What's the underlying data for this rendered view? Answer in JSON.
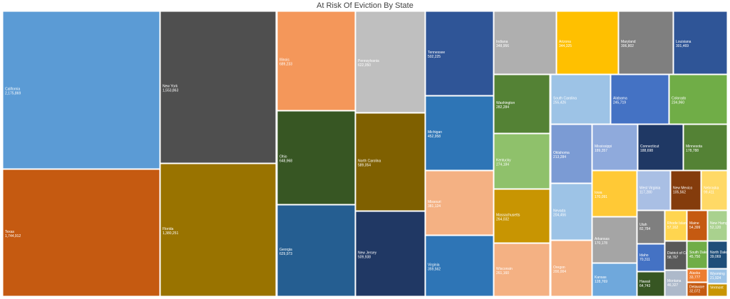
{
  "chart_data": {
    "type": "treemap",
    "title": "At Risk Of Eviction By State",
    "items": [
      {
        "name": "California",
        "value": "2,175,869",
        "v": 2175869,
        "color": "#5b9bd5"
      },
      {
        "name": "Texas",
        "value": "1,744,912",
        "v": 1744912,
        "color": "#c55a11"
      },
      {
        "name": "New York",
        "value": "1,553,863",
        "v": 1553863,
        "color": "#4f4f4f"
      },
      {
        "name": "Florida",
        "value": "1,380,251",
        "v": 1380251,
        "color": "#997300"
      },
      {
        "name": "Illinois",
        "value": "689,233",
        "v": 689233,
        "color": "#f4975a"
      },
      {
        "name": "Ohio",
        "value": "648,968",
        "v": 648968,
        "color": "#375623"
      },
      {
        "name": "Georgia",
        "value": "629,973",
        "v": 629973,
        "color": "#255e91"
      },
      {
        "name": "Pennsylvania",
        "value": "622,050",
        "v": 622050,
        "color": "#bfbfbf"
      },
      {
        "name": "North Carolina",
        "value": "589,054",
        "v": 589054,
        "color": "#7f6000"
      },
      {
        "name": "New Jersey",
        "value": "509,938",
        "v": 509938,
        "color": "#203864"
      },
      {
        "name": "Tennessee",
        "value": "502,225",
        "v": 502225,
        "color": "#2f5597"
      },
      {
        "name": "Michigan",
        "value": "452,958",
        "v": 452958,
        "color": "#2e75b6"
      },
      {
        "name": "Missouri",
        "value": "381,124",
        "v": 381124,
        "color": "#f4b183"
      },
      {
        "name": "Virginia",
        "value": "359,562",
        "v": 359562,
        "color": "#2e75b6"
      },
      {
        "name": "Indiana",
        "value": "348,956",
        "v": 348956,
        "color": "#afafaf"
      },
      {
        "name": "Arizona",
        "value": "344,325",
        "v": 344325,
        "color": "#ffc000"
      },
      {
        "name": "Maryland",
        "value": "306,802",
        "v": 306802,
        "color": "#7f7f7f"
      },
      {
        "name": "Louisiana",
        "value": "301,469",
        "v": 301469,
        "color": "#2f5597"
      },
      {
        "name": "Washington",
        "value": "282,284",
        "v": 282284,
        "color": "#548235"
      },
      {
        "name": "Kentucky",
        "value": "274,184",
        "v": 274184,
        "color": "#8fc16b"
      },
      {
        "name": "Massachusetts",
        "value": "264,032",
        "v": 264032,
        "color": "#c89502"
      },
      {
        "name": "Wisconsin",
        "value": "261,160",
        "v": 261160,
        "color": "#f4b183"
      },
      {
        "name": "South Carolina",
        "value": "255,426",
        "v": 255426,
        "color": "#9dc3e6"
      },
      {
        "name": "Alabama",
        "value": "245,719",
        "v": 245719,
        "color": "#4472c4"
      },
      {
        "name": "Colorado",
        "value": "234,960",
        "v": 234960,
        "color": "#70ad47"
      },
      {
        "name": "Oklahoma",
        "value": "213,284",
        "v": 213284,
        "color": "#7b9bd4"
      },
      {
        "name": "Nevada",
        "value": "204,456",
        "v": 204456,
        "color": "#9dc3e6"
      },
      {
        "name": "Oregon",
        "value": "200,004",
        "v": 200004,
        "color": "#f4b183"
      },
      {
        "name": "Mississippi",
        "value": "189,357",
        "v": 189357,
        "color": "#8faadc"
      },
      {
        "name": "Connecticut",
        "value": "188,698",
        "v": 188698,
        "color": "#1f3864"
      },
      {
        "name": "Minnesota",
        "value": "178,788",
        "v": 178788,
        "color": "#548235"
      },
      {
        "name": "Iowa",
        "value": "170,091",
        "v": 170091,
        "color": "#ffc936"
      },
      {
        "name": "Arkansas",
        "value": "170,178",
        "v": 170178,
        "color": "#a5a5a5"
      },
      {
        "name": "Kansas",
        "value": "128,769",
        "v": 128769,
        "color": "#6fa8dc"
      },
      {
        "name": "West Virginia",
        "value": "117,280",
        "v": 117280,
        "color": "#a9bfe4"
      },
      {
        "name": "New Mexico",
        "value": "105,562",
        "v": 105562,
        "color": "#843c0c"
      },
      {
        "name": "Nebraska",
        "value": "99,411",
        "v": 99411,
        "color": "#ffd966"
      },
      {
        "name": "Utah",
        "value": "82,784",
        "v": 82784,
        "color": "#7f7f7f"
      },
      {
        "name": "Idaho",
        "value": "70,311",
        "v": 70311,
        "color": "#4472c4"
      },
      {
        "name": "Hawaii",
        "value": "64,743",
        "v": 64743,
        "color": "#375623"
      },
      {
        "name": "Rhode Island",
        "value": "57,162",
        "v": 57162,
        "color": "#ffd54f"
      },
      {
        "name": "District of Columbia",
        "value": "58,767",
        "v": 58767,
        "color": "#595959"
      },
      {
        "name": "Maine",
        "value": "54,399",
        "v": 54399,
        "color": "#c55a11"
      },
      {
        "name": "New Hampshire",
        "value": "52,120",
        "v": 52120,
        "color": "#a9d18e"
      },
      {
        "name": "South Dakota",
        "value": "45,750",
        "v": 45750,
        "color": "#70ad47"
      },
      {
        "name": "North Dakota",
        "value": "39,069",
        "v": 39069,
        "color": "#1f4e79"
      },
      {
        "name": "Alaska",
        "value": "33,777",
        "v": 33777,
        "color": "#ed7d31"
      },
      {
        "name": "Montana",
        "value": "46,327",
        "v": 46327,
        "color": "#adb9ca"
      },
      {
        "name": "Delaware",
        "value": "32,072",
        "v": 32072,
        "color": "#c55a11"
      },
      {
        "name": "Wyoming",
        "value": "21,924",
        "v": 21924,
        "color": "#9dc3e6"
      },
      {
        "name": "Vermont",
        "value": "",
        "v": 18000,
        "color": "#c89502"
      }
    ]
  }
}
